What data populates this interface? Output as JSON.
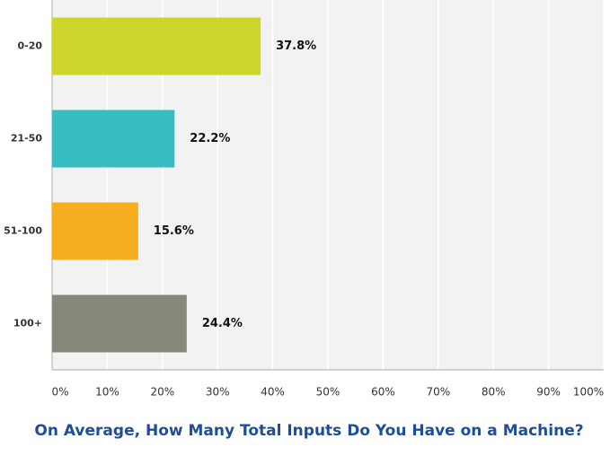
{
  "chart_data": {
    "type": "barh",
    "title": "On Average, How Many Total Inputs Do You Have on a Machine?",
    "categories": [
      "0-20",
      "21-50",
      "51-100",
      "100+"
    ],
    "values": [
      37.8,
      22.2,
      15.6,
      24.4
    ],
    "value_labels": [
      "37.8%",
      "22.2%",
      "15.6%",
      "24.4%"
    ],
    "colors": [
      "#cdd42a",
      "#38bec0",
      "#f6ae20",
      "#87887a"
    ],
    "xlim": [
      0,
      100
    ],
    "xticks": [
      {
        "value": 0,
        "label": "0%"
      },
      {
        "value": 10,
        "label": "10%"
      },
      {
        "value": 20,
        "label": "20%"
      },
      {
        "value": 30,
        "label": "30%"
      },
      {
        "value": 40,
        "label": "40%"
      },
      {
        "value": 50,
        "label": "50%"
      },
      {
        "value": 60,
        "label": "60%"
      },
      {
        "value": 70,
        "label": "70%"
      },
      {
        "value": 80,
        "label": "80%"
      },
      {
        "value": 90,
        "label": "90%"
      },
      {
        "value": 100,
        "label": "100%"
      }
    ],
    "grid": true
  }
}
